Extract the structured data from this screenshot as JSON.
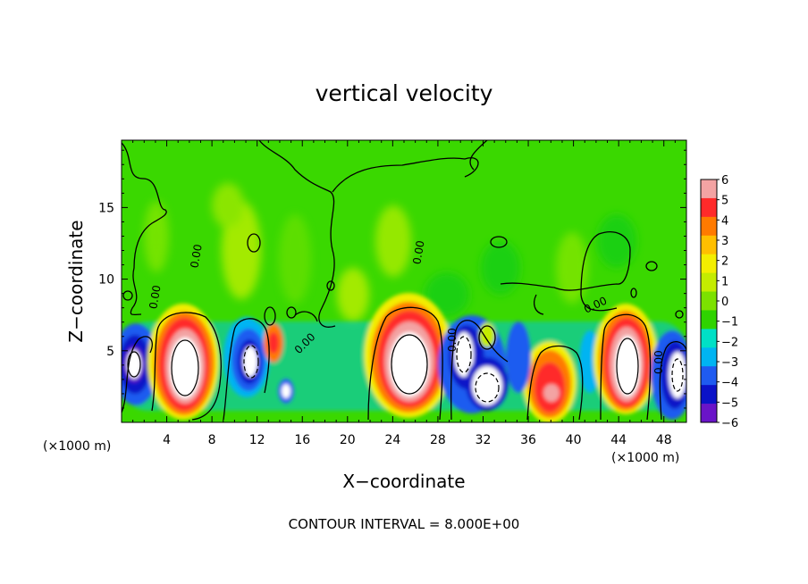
{
  "chart_data": {
    "type": "heatmap",
    "title": "vertical velocity",
    "xlabel": "X−coordinate",
    "ylabel": "Z−coordinate",
    "x_unit_left": "(×1000 m)",
    "x_unit_right": "(×1000 m)",
    "footer": "CONTOUR INTERVAL = 8.000E+00",
    "xlim": [
      0,
      50
    ],
    "ylim": [
      0,
      19.7
    ],
    "x_ticks": [
      4,
      8,
      12,
      16,
      20,
      24,
      28,
      32,
      36,
      40,
      44,
      48
    ],
    "x_tick_labels": [
      "4",
      "8",
      "12",
      "16",
      "20",
      "24",
      "28",
      "32",
      "36",
      "40",
      "44",
      "48"
    ],
    "y_ticks": [
      5,
      10,
      15
    ],
    "y_tick_labels": [
      "5",
      "10",
      "15"
    ],
    "colorbar": {
      "min": -6,
      "max": 6,
      "tick_labels": [
        "6",
        "5",
        "4",
        "3",
        "2",
        "1",
        "0",
        "−1",
        "−2",
        "−3",
        "−4",
        "−5",
        "−6"
      ],
      "colors": [
        "#f3a3a3",
        "#ff2a2a",
        "#ff7a00",
        "#ffbf00",
        "#f3ee00",
        "#c4ec00",
        "#7ce100",
        "#2fd300",
        "#00e0c6",
        "#00b4f2",
        "#1f5bf0",
        "#0b12c8",
        "#6a14c8"
      ]
    },
    "contour_label": "0.00",
    "cells": [
      {
        "x": 1,
        "z": 4.5,
        "w": -30
      },
      {
        "x": 5.5,
        "z": 4.0,
        "w": 30
      },
      {
        "x": 11.5,
        "z": 4.5,
        "w": -14
      },
      {
        "x": 13.2,
        "z": 5.5,
        "w": 3
      },
      {
        "x": 14.3,
        "z": 2.0,
        "w": -5
      },
      {
        "x": 25.3,
        "z": 4.3,
        "w": 30
      },
      {
        "x": 30.2,
        "z": 4.8,
        "w": -16
      },
      {
        "x": 32.5,
        "z": 2.6,
        "w": -16
      },
      {
        "x": 37.8,
        "z": 2.4,
        "w": 9
      },
      {
        "x": 44.7,
        "z": 4.2,
        "w": 30
      },
      {
        "x": 49,
        "z": 3.6,
        "w": -14
      }
    ]
  }
}
